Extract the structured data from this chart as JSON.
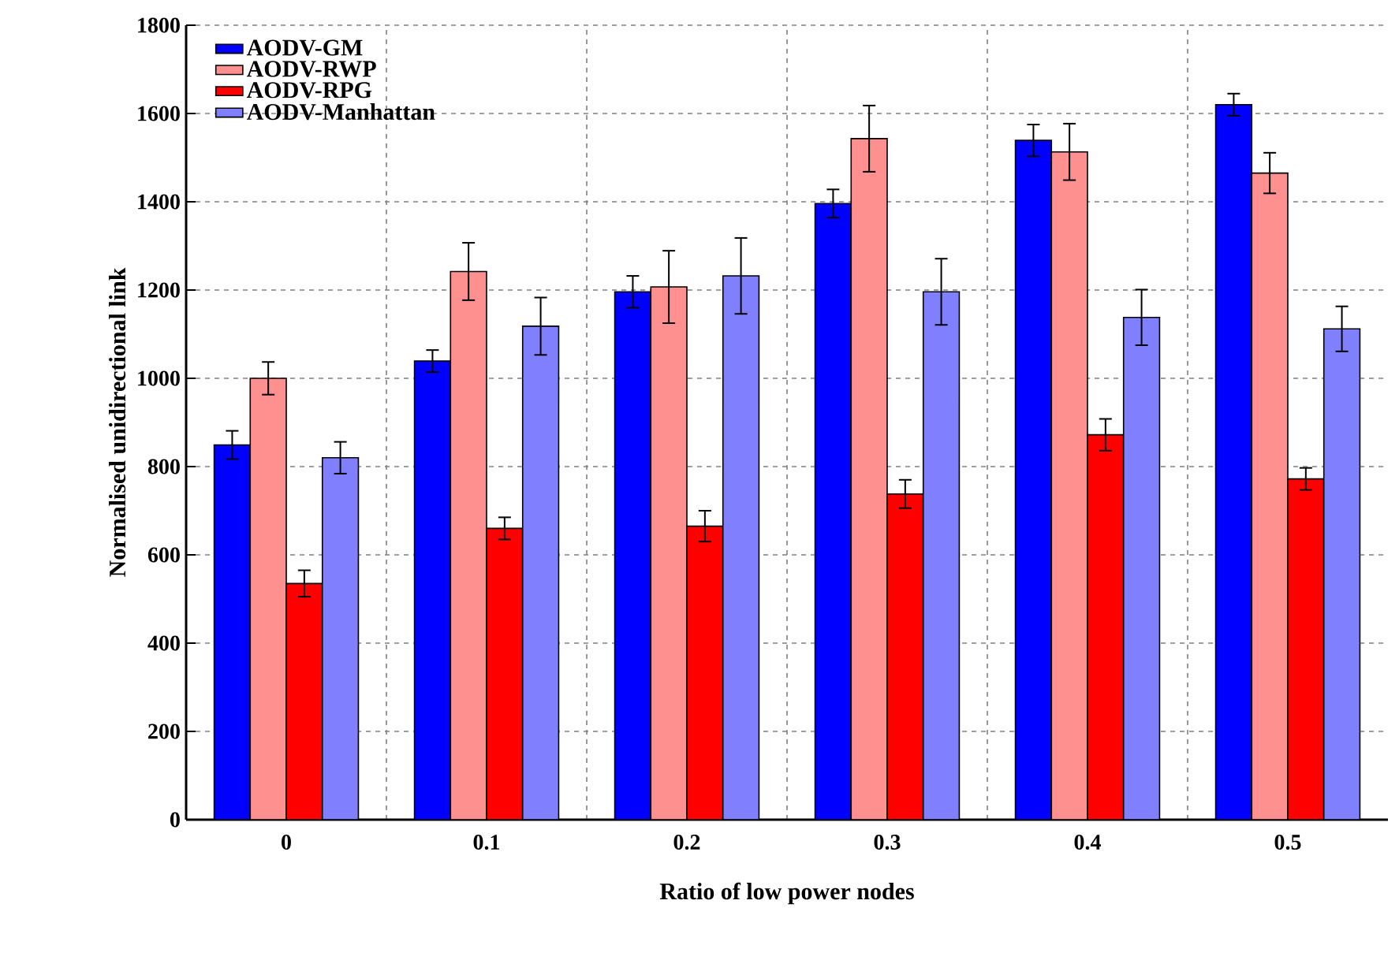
{
  "chart_data": {
    "type": "bar",
    "xlabel": "Ratio of low power nodes",
    "ylabel": "Normalised unidirectional link",
    "categories": [
      "0",
      "0.1",
      "0.2",
      "0.3",
      "0.4",
      "0.5"
    ],
    "series": [
      {
        "name": "AODV-GM",
        "color": "#0000ff",
        "values": [
          849,
          1039,
          1196,
          1396,
          1539,
          1620
        ],
        "errors": [
          32,
          25,
          36,
          32,
          36,
          25
        ]
      },
      {
        "name": "AODV-RWP",
        "color": "#ff9090",
        "values": [
          1000,
          1242,
          1207,
          1543,
          1513,
          1465
        ],
        "errors": [
          37,
          65,
          82,
          75,
          64,
          46
        ]
      },
      {
        "name": "AODV-RPG",
        "color": "#ff0000",
        "values": [
          535,
          660,
          665,
          738,
          872,
          772
        ],
        "errors": [
          30,
          25,
          35,
          32,
          36,
          25
        ]
      },
      {
        "name": "AODV-Manhattan",
        "color": "#8080ff",
        "values": [
          820,
          1118,
          1232,
          1196,
          1138,
          1112
        ],
        "errors": [
          36,
          65,
          86,
          75,
          63,
          51
        ]
      }
    ],
    "ylim": [
      0,
      1800
    ],
    "yticks": [
      0,
      200,
      400,
      600,
      800,
      1000,
      1200,
      1400,
      1600,
      1800
    ],
    "grid": true,
    "legend": "top left"
  }
}
